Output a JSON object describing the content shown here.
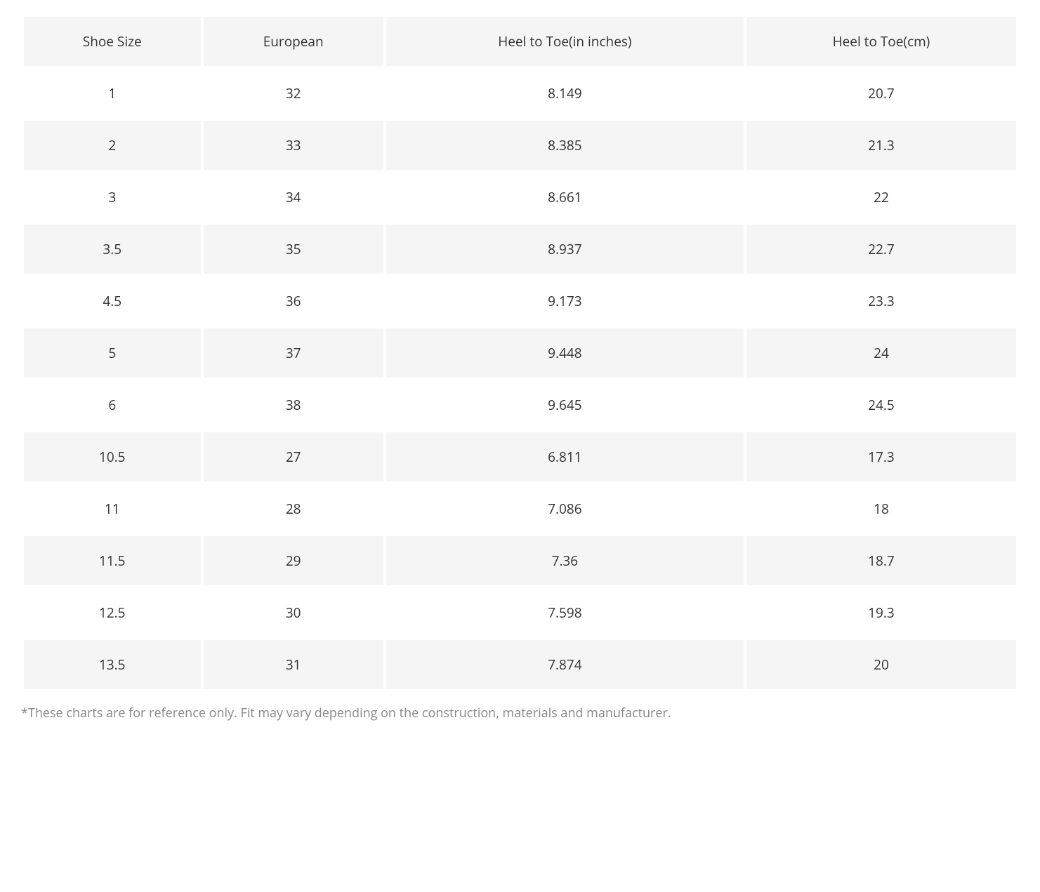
{
  "table": {
    "columns": [
      "Shoe Size",
      "European",
      "Heel to Toe(in inches)",
      "Heel to Toe(cm)"
    ],
    "rows": [
      [
        "1",
        "32",
        "8.149",
        "20.7"
      ],
      [
        "2",
        "33",
        "8.385",
        "21.3"
      ],
      [
        "3",
        "34",
        "8.661",
        "22"
      ],
      [
        "3.5",
        "35",
        "8.937",
        "22.7"
      ],
      [
        "4.5",
        "36",
        "9.173",
        "23.3"
      ],
      [
        "5",
        "37",
        "9.448",
        "24"
      ],
      [
        "6",
        "38",
        "9.645",
        "24.5"
      ],
      [
        "10.5",
        "27",
        "6.811",
        "17.3"
      ],
      [
        "11",
        "28",
        "7.086",
        "18"
      ],
      [
        "11.5",
        "29",
        "7.36",
        "18.7"
      ],
      [
        "12.5",
        "30",
        "7.598",
        "19.3"
      ],
      [
        "13.5",
        "31",
        "7.874",
        "20"
      ]
    ],
    "header_bg": "#f5f5f5",
    "row_alt_bg": "#f5f5f5",
    "row_bg": "#ffffff",
    "text_color": "#333333",
    "font_size": 19,
    "cell_padding": "22px 10px"
  },
  "footnote": "*These charts are for reference only. Fit may vary depending on the construction, materials and manufacturer.",
  "footnote_color": "#888888"
}
